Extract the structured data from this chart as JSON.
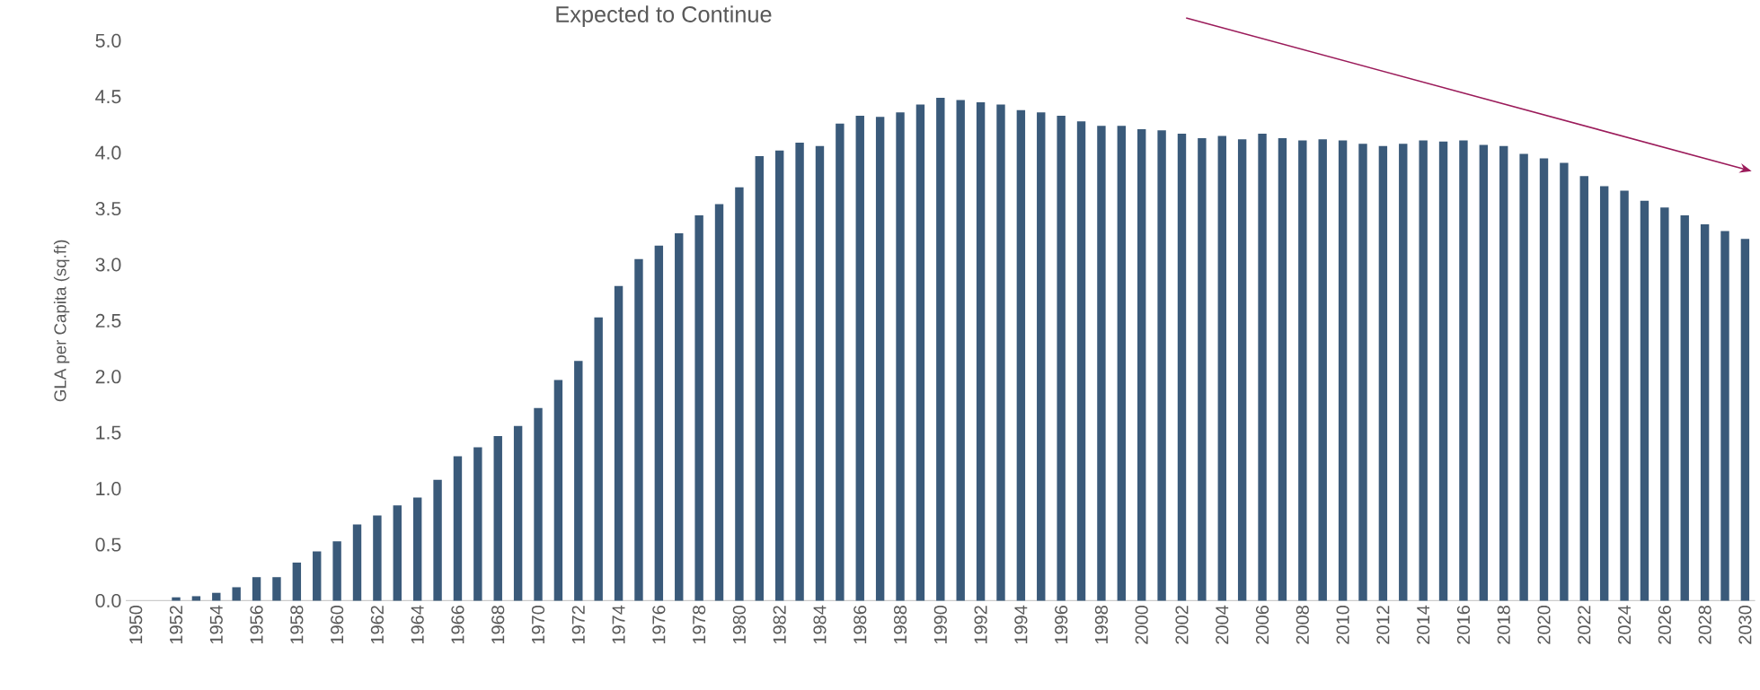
{
  "chart_data": {
    "type": "bar",
    "title": "Expected to Continue",
    "ylabel": "GLA per Capita (sq.ft)",
    "categories": [
      "1950",
      null,
      "1952",
      null,
      "1954",
      null,
      "1956",
      null,
      "1958",
      null,
      "1960",
      null,
      "1962",
      null,
      "1964",
      null,
      "1966",
      null,
      "1968",
      null,
      "1970",
      null,
      "1972",
      null,
      "1974",
      null,
      "1976",
      null,
      "1978",
      null,
      "1980",
      null,
      "1982",
      null,
      "1984",
      null,
      "1986",
      null,
      "1988",
      null,
      "1990",
      null,
      "1992",
      null,
      "1994",
      null,
      "1996",
      null,
      "1998",
      null,
      "2000",
      null,
      "2002",
      null,
      "2004",
      null,
      "2006",
      null,
      "2008",
      null,
      "2010",
      null,
      "2012",
      null,
      "2014",
      null,
      "2016",
      null,
      "2018",
      null,
      "2020",
      null,
      "2022",
      null,
      "2024",
      null,
      "2026",
      null,
      "2028",
      null,
      "2030"
    ],
    "values": [
      0,
      0,
      0.03,
      0.04,
      0.07,
      0.12,
      0.21,
      0.21,
      0.34,
      0.44,
      0.53,
      0.68,
      0.76,
      0.85,
      0.92,
      1.08,
      1.29,
      1.37,
      1.47,
      1.56,
      1.72,
      1.97,
      2.14,
      2.53,
      2.81,
      3.05,
      3.17,
      3.28,
      3.44,
      3.54,
      3.69,
      3.97,
      4.02,
      4.09,
      4.06,
      4.26,
      4.33,
      4.32,
      4.36,
      4.43,
      4.49,
      4.47,
      4.45,
      4.43,
      4.38,
      4.36,
      4.33,
      4.28,
      4.24,
      4.24,
      4.21,
      4.2,
      4.17,
      4.13,
      4.15,
      4.12,
      4.17,
      4.13,
      4.11,
      4.12,
      4.11,
      4.08,
      4.06,
      4.08,
      4.11,
      4.1,
      4.11,
      4.07,
      4.06,
      3.99,
      3.95,
      3.91,
      3.79,
      3.7,
      3.66,
      3.57,
      3.51,
      3.44,
      3.36,
      3.3,
      3.23
    ],
    "color": "#3a5a7a",
    "ylim": [
      0,
      5
    ],
    "yticks": [
      {
        "value": 0,
        "label": "0.0"
      },
      {
        "value": 0.5,
        "label": "0.5"
      },
      {
        "value": 1,
        "label": "1.0"
      },
      {
        "value": 1.5,
        "label": "1.5"
      },
      {
        "value": 2,
        "label": "2.0"
      },
      {
        "value": 2.5,
        "label": "2.5"
      },
      {
        "value": 3,
        "label": "3.0"
      },
      {
        "value": 3.5,
        "label": "3.5"
      },
      {
        "value": 4,
        "label": "4.0"
      },
      {
        "value": 4.5,
        "label": "4.5"
      },
      {
        "value": 5,
        "label": "5.0"
      }
    ],
    "grid": false
  }
}
